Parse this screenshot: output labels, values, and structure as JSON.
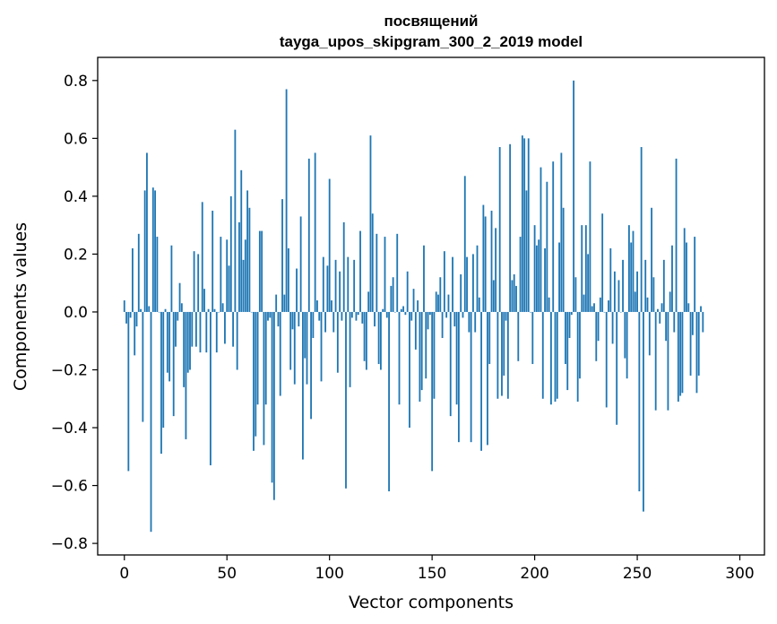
{
  "chart_data": {
    "type": "bar",
    "title": "посвящений\ntayga_upos_skipgram_300_2_2019 model",
    "title_lines": [
      "посвящений",
      "tayga_upos_skipgram_300_2_2019 model"
    ],
    "xlabel": "Vector components",
    "ylabel": "Components values",
    "xlim": [
      -13,
      312
    ],
    "ylim": [
      -0.84,
      0.88
    ],
    "xticks": [
      0,
      50,
      100,
      150,
      200,
      250,
      300
    ],
    "xtick_labels": [
      "0",
      "50",
      "100",
      "150",
      "200",
      "250",
      "300"
    ],
    "yticks": [
      -0.8,
      -0.6,
      -0.4,
      -0.2,
      0.0,
      0.2,
      0.4,
      0.6,
      0.8
    ],
    "ytick_labels": [
      "−0.8",
      "−0.6",
      "−0.4",
      "−0.2",
      "0.0",
      "0.2",
      "0.4",
      "0.6",
      "0.8"
    ],
    "grid": false,
    "bar_color": "#1f77b4",
    "values": [
      0.04,
      -0.04,
      -0.55,
      -0.02,
      0.22,
      -0.15,
      -0.05,
      0.27,
      0.01,
      -0.38,
      0.42,
      0.55,
      0.02,
      -0.76,
      0.43,
      0.42,
      0.26,
      0.0,
      -0.49,
      -0.4,
      0.01,
      -0.21,
      -0.24,
      0.23,
      -0.36,
      -0.12,
      -0.03,
      0.1,
      0.03,
      -0.26,
      -0.44,
      -0.21,
      -0.2,
      -0.12,
      0.21,
      -0.12,
      0.2,
      -0.14,
      0.38,
      0.08,
      -0.14,
      0.01,
      -0.53,
      0.35,
      0.01,
      -0.14,
      0.0,
      0.26,
      0.03,
      -0.11,
      0.25,
      0.16,
      0.4,
      -0.12,
      0.63,
      -0.2,
      0.31,
      0.49,
      0.18,
      0.25,
      0.42,
      0.36,
      0.0,
      -0.48,
      -0.43,
      -0.32,
      0.28,
      0.28,
      -0.46,
      -0.32,
      -0.03,
      -0.02,
      -0.59,
      -0.65,
      0.06,
      -0.05,
      -0.29,
      0.39,
      0.06,
      0.77,
      0.22,
      -0.2,
      -0.06,
      -0.25,
      0.15,
      -0.05,
      0.33,
      -0.51,
      -0.16,
      -0.25,
      0.53,
      -0.37,
      -0.09,
      0.55,
      0.04,
      -0.03,
      -0.24,
      0.19,
      -0.07,
      0.16,
      0.46,
      0.04,
      -0.07,
      0.18,
      -0.21,
      0.14,
      -0.03,
      0.31,
      -0.61,
      0.19,
      -0.26,
      -0.02,
      0.18,
      -0.03,
      -0.01,
      0.28,
      -0.04,
      -0.17,
      -0.2,
      0.07,
      0.61,
      0.34,
      -0.05,
      0.27,
      -0.18,
      -0.2,
      0.01,
      0.26,
      -0.02,
      -0.62,
      0.09,
      0.12,
      0.0,
      0.27,
      -0.32,
      0.01,
      0.02,
      -0.01,
      0.14,
      -0.4,
      -0.03,
      0.08,
      -0.13,
      0.04,
      -0.31,
      -0.27,
      0.23,
      -0.23,
      -0.06,
      -0.01,
      -0.55,
      -0.3,
      0.07,
      0.06,
      0.12,
      -0.09,
      0.21,
      -0.02,
      0.06,
      -0.36,
      0.19,
      -0.05,
      -0.32,
      -0.45,
      0.13,
      -0.02,
      0.47,
      0.19,
      -0.07,
      -0.45,
      0.2,
      -0.07,
      0.23,
      0.05,
      -0.48,
      0.37,
      0.33,
      -0.46,
      -0.18,
      0.35,
      0.11,
      0.29,
      -0.3,
      0.57,
      -0.29,
      -0.22,
      -0.03,
      -0.3,
      0.58,
      0.11,
      0.13,
      0.09,
      -0.17,
      0.26,
      0.61,
      0.6,
      0.42,
      0.6,
      0.0,
      -0.18,
      0.3,
      0.23,
      0.25,
      0.5,
      -0.3,
      0.22,
      0.45,
      0.05,
      -0.32,
      0.52,
      -0.31,
      -0.3,
      0.24,
      0.55,
      0.36,
      -0.18,
      -0.27,
      -0.09,
      -0.01,
      0.8,
      0.12,
      -0.31,
      -0.23,
      0.3,
      0.06,
      0.3,
      0.2,
      0.52,
      0.02,
      0.03,
      -0.17,
      -0.1,
      0.05,
      0.34,
      0.0,
      -0.33,
      0.04,
      0.22,
      -0.11,
      0.14,
      -0.39,
      0.11,
      0.0,
      0.18,
      -0.16,
      -0.23,
      0.3,
      0.24,
      0.28,
      0.07,
      0.14,
      -0.62,
      0.57,
      -0.69,
      0.18,
      0.05,
      -0.15,
      0.36,
      0.12,
      -0.34,
      0.01,
      -0.04,
      0.03,
      0.18,
      -0.1,
      -0.34,
      0.07,
      0.23,
      -0.07,
      0.53,
      -0.31,
      -0.29,
      -0.28,
      0.29,
      0.24,
      0.03,
      -0.22,
      -0.08,
      0.26,
      -0.28,
      -0.22,
      0.02,
      -0.07
    ]
  }
}
